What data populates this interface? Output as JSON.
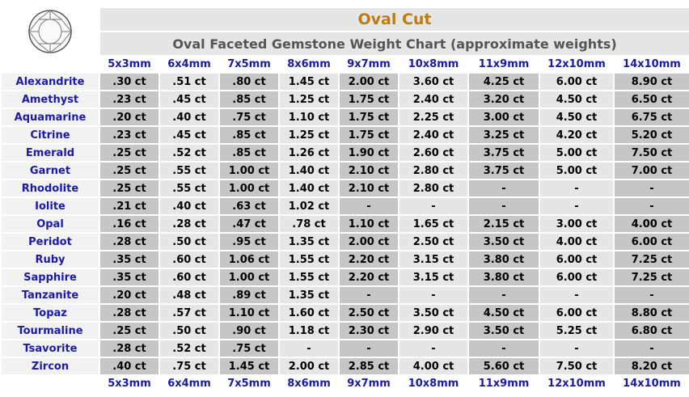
{
  "header": {
    "title": "Oval Cut",
    "subtitle": "Oval Faceted Gemstone Weight Chart (approximate weights)"
  },
  "table": {
    "columns": [
      "5x3mm",
      "6x4mm",
      "7x5mm",
      "8x6mm",
      "9x7mm",
      "10x8mm",
      "11x9mm",
      "12x10mm",
      "14x10mm"
    ],
    "rows": [
      {
        "name": "Alexandrite",
        "cells": [
          ".30 ct",
          ".51 ct",
          ".80 ct",
          "1.45 ct",
          "2.00 ct",
          "3.60 ct",
          "4.25 ct",
          "6.00 ct",
          "8.90 ct"
        ]
      },
      {
        "name": "Amethyst",
        "cells": [
          ".23 ct",
          ".45 ct",
          ".85 ct",
          "1.25 ct",
          "1.75 ct",
          "2.40 ct",
          "3.20 ct",
          "4.50 ct",
          "6.50 ct"
        ]
      },
      {
        "name": "Aquamarine",
        "cells": [
          ".20 ct",
          ".40 ct",
          ".75 ct",
          "1.10 ct",
          "1.75 ct",
          "2.25 ct",
          "3.00 ct",
          "4.50 ct",
          "6.75 ct"
        ]
      },
      {
        "name": "Citrine",
        "cells": [
          ".23 ct",
          ".45 ct",
          ".85 ct",
          "1.25 ct",
          "1.75 ct",
          "2.40 ct",
          "3.25 ct",
          "4.20 ct",
          "5.20 ct"
        ]
      },
      {
        "name": "Emerald",
        "cells": [
          ".25 ct",
          ".52 ct",
          ".85 ct",
          "1.26 ct",
          "1.90 ct",
          "2.60 ct",
          "3.75 ct",
          "5.00 ct",
          "7.50 ct"
        ]
      },
      {
        "name": "Garnet",
        "cells": [
          ".25 ct",
          ".55 ct",
          "1.00 ct",
          "1.40 ct",
          "2.10 ct",
          "2.80 ct",
          "3.75 ct",
          "5.00 ct",
          "7.00 ct"
        ]
      },
      {
        "name": "Rhodolite",
        "cells": [
          ".25 ct",
          ".55 ct",
          "1.00 ct",
          "1.40 ct",
          "2.10 ct",
          "2.80 ct",
          "-",
          "-",
          "-"
        ]
      },
      {
        "name": "Iolite",
        "cells": [
          ".21 ct",
          ".40 ct",
          ".63 ct",
          "1.02 ct",
          "-",
          "-",
          "-",
          "-",
          "-"
        ]
      },
      {
        "name": "Opal",
        "cells": [
          ".16 ct",
          ".28 ct",
          ".47 ct",
          ".78 ct",
          "1.10 ct",
          "1.65 ct",
          "2.15 ct",
          "3.00 ct",
          "4.00 ct"
        ]
      },
      {
        "name": "Peridot",
        "cells": [
          ".28 ct",
          ".50 ct",
          ".95 ct",
          "1.35 ct",
          "2.00 ct",
          "2.50 ct",
          "3.50 ct",
          "4.00 ct",
          "6.00 ct"
        ]
      },
      {
        "name": "Ruby",
        "cells": [
          ".35 ct",
          ".60 ct",
          "1.06 ct",
          "1.55 ct",
          "2.20 ct",
          "3.15 ct",
          "3.80 ct",
          "6.00 ct",
          "7.25 ct"
        ]
      },
      {
        "name": "Sapphire",
        "cells": [
          ".35 ct",
          ".60 ct",
          "1.00 ct",
          "1.55 ct",
          "2.20 ct",
          "3.15 ct",
          "3.80 ct",
          "6.00 ct",
          "7.25 ct"
        ]
      },
      {
        "name": "Tanzanite",
        "cells": [
          ".20 ct",
          ".48 ct",
          ".89 ct",
          "1.35 ct",
          "-",
          "-",
          "-",
          "-",
          "-"
        ]
      },
      {
        "name": "Topaz",
        "cells": [
          ".28 ct",
          ".57 ct",
          "1.10 ct",
          "1.60 ct",
          "2.50 ct",
          "3.50 ct",
          "4.50 ct",
          "6.00 ct",
          "8.80 ct"
        ]
      },
      {
        "name": "Tourmaline",
        "cells": [
          ".25 ct",
          ".50 ct",
          ".90 ct",
          "1.18 ct",
          "2.30 ct",
          "2.90 ct",
          "3.50 ct",
          "5.25 ct",
          "6.80 ct"
        ]
      },
      {
        "name": "Tsavorite",
        "cells": [
          ".28 ct",
          ".52 ct",
          ".75 ct",
          "-",
          "-",
          "-",
          "-",
          "-",
          "-"
        ]
      },
      {
        "name": "Zircon",
        "cells": [
          ".40 ct",
          ".75 ct",
          "1.45 ct",
          "2.00 ct",
          "2.85 ct",
          "4.00 ct",
          "5.60 ct",
          "7.50 ct",
          "8.20 ct"
        ]
      }
    ]
  }
}
